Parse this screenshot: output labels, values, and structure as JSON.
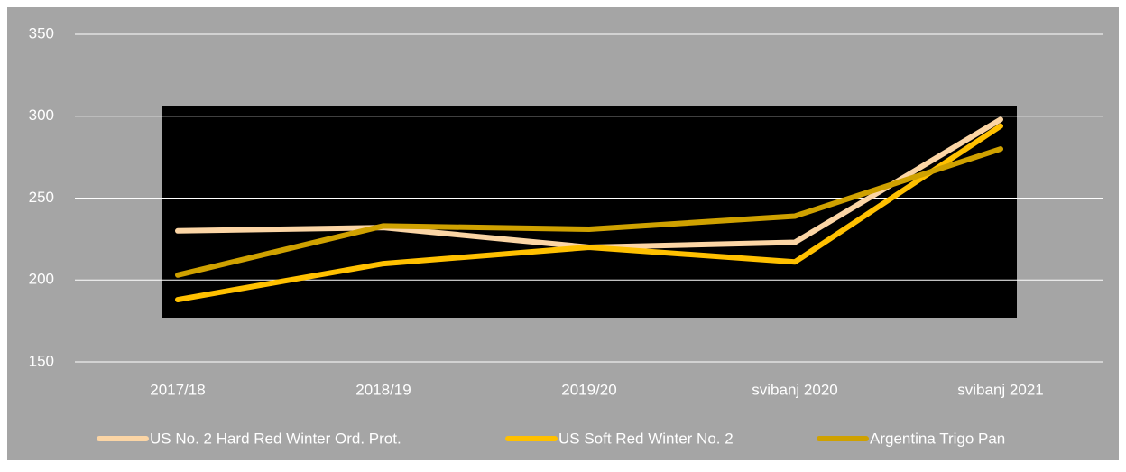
{
  "chart_data": {
    "type": "line",
    "categories": [
      "2017/18",
      "2018/19",
      "2019/20",
      "svibanj 2020",
      "svibanj 2021"
    ],
    "series": [
      {
        "name": "US No. 2 Hard Red Winter Ord. Prot.",
        "color": "#fbd5a5",
        "values": [
          230,
          232,
          220,
          223,
          298
        ]
      },
      {
        "name": "US Soft Red Winter No. 2",
        "color": "#ffc000",
        "values": [
          188,
          210,
          220,
          211,
          294
        ]
      },
      {
        "name": "Argentina Trigo Pan",
        "color": "#cfa100",
        "values": [
          203,
          233,
          231,
          239,
          280
        ]
      }
    ],
    "ylim": [
      150,
      350
    ],
    "yticks": [
      150,
      200,
      250,
      300,
      350
    ],
    "grid": true
  }
}
